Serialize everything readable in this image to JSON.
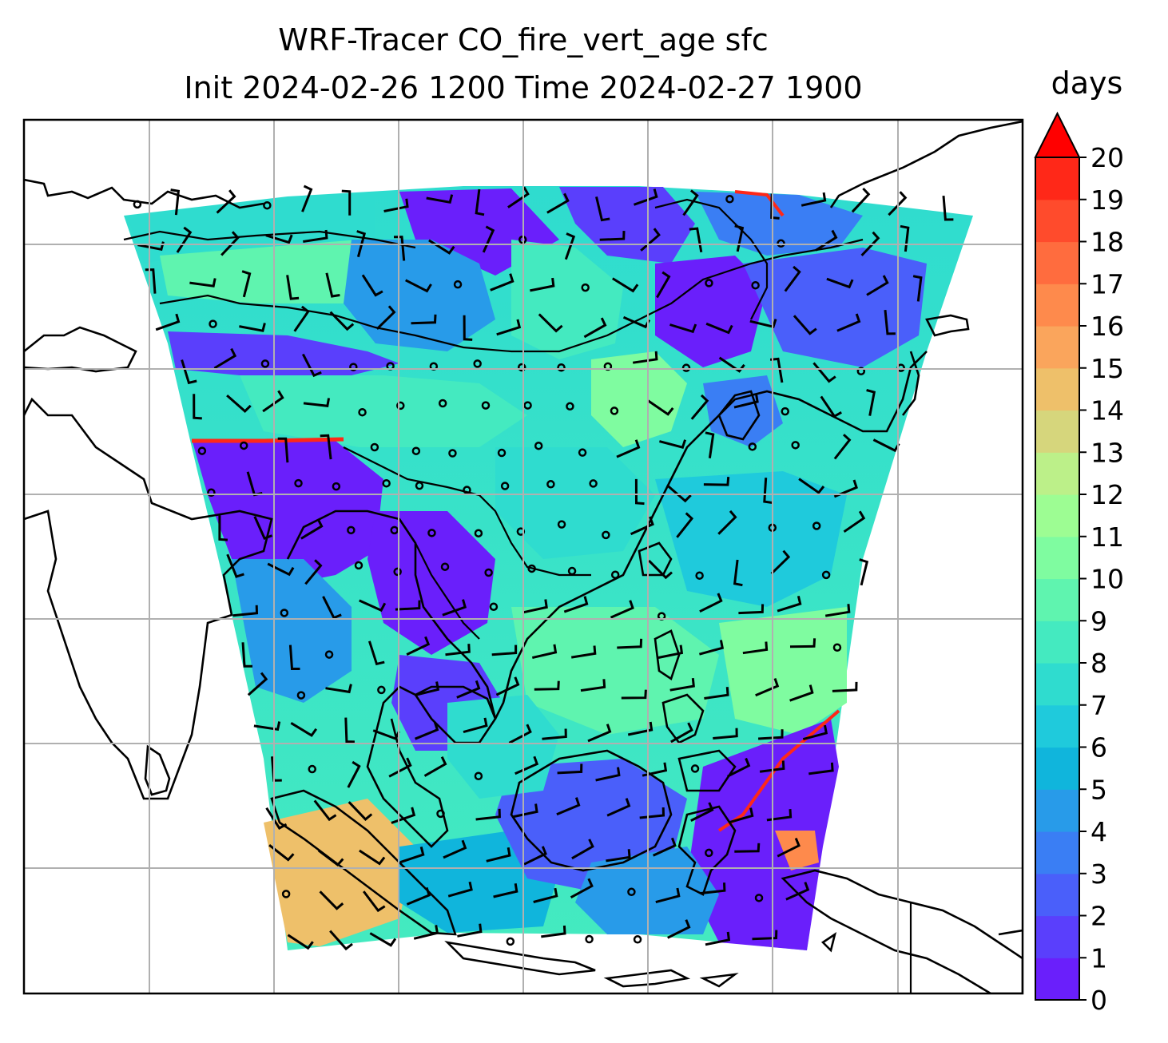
{
  "title": {
    "line1": "WRF-Tracer CO_fire_vert_age sfc",
    "line2": "Init 2024-02-26 1200 Time 2024-02-27 1900"
  },
  "colorbar": {
    "label": "days",
    "ticks": [
      "0",
      "1",
      "2",
      "3",
      "4",
      "5",
      "6",
      "7",
      "8",
      "9",
      "10",
      "11",
      "12",
      "13",
      "14",
      "15",
      "16",
      "17",
      "18",
      "19",
      "20"
    ],
    "min": 0,
    "max": 20,
    "extend": "max",
    "colors": [
      "#6a1ffb",
      "#5a3ffc",
      "#4a5ffa",
      "#3a7ef4",
      "#289be9",
      "#10b5dc",
      "#1fcadc",
      "#2fdccf",
      "#44eac0",
      "#5ff4af",
      "#7ffca0",
      "#9dfd93",
      "#bcf089",
      "#d6d67c",
      "#eec06a",
      "#faa55c",
      "#fe8a4c",
      "#ff6c3e",
      "#ff4b2c",
      "#ff2818"
    ],
    "over_color": "#ff0000"
  },
  "map": {
    "gridlines": true,
    "features": [
      "coastlines",
      "country borders",
      "wind barbs",
      "calm wind circles"
    ]
  }
}
